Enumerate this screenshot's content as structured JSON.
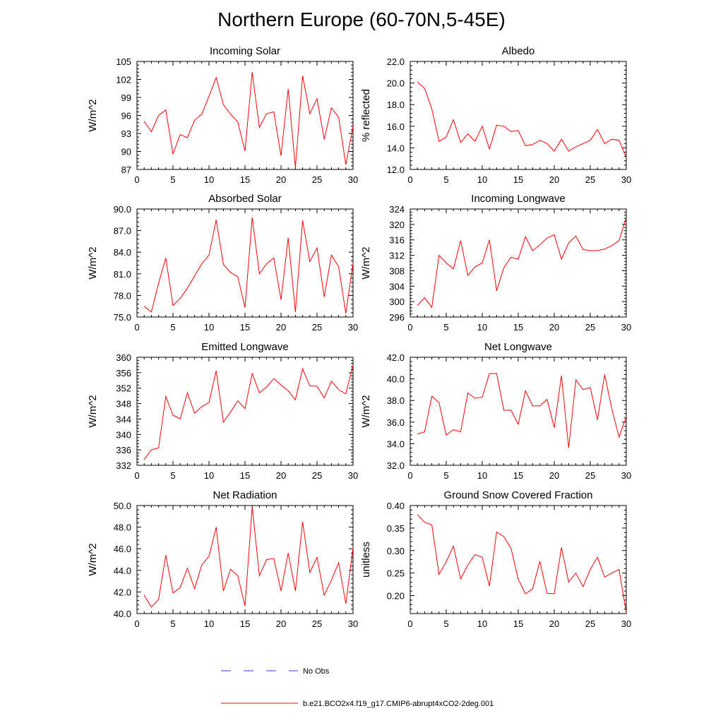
{
  "title": "Northern Europe (60-70N,5-45E)",
  "colors": {
    "model": "#ff0000",
    "obs": "#3b3bbf",
    "axis": "#000000"
  },
  "legend": [
    {
      "label": "No Obs",
      "style": "dashed",
      "color": "#3b3bbf"
    },
    {
      "label": "b.e21.BCO2x4.f19_g17.CMIP6-abrupt4xCO2-2deg.001",
      "style": "solid",
      "color": "#ff0000"
    }
  ],
  "chart_data": [
    {
      "type": "line",
      "title": "Incoming Solar",
      "ylabel": "W/m^2",
      "xlabel": "",
      "xlim": [
        0,
        30
      ],
      "ylim": [
        87,
        105
      ],
      "xticks": [
        "0",
        "5",
        "10",
        "15",
        "20",
        "25",
        "30"
      ],
      "yticks": [
        "87",
        "90",
        "93",
        "96",
        "99",
        "102",
        "105"
      ],
      "x": [
        1,
        2,
        3,
        4,
        5,
        6,
        7,
        8,
        9,
        10,
        11,
        12,
        13,
        14,
        15,
        16,
        17,
        18,
        19,
        20,
        21,
        22,
        23,
        24,
        25,
        26,
        27,
        28,
        29,
        30
      ],
      "series": [
        {
          "values": [
            95.0,
            93.3,
            96.0,
            96.9,
            89.6,
            92.8,
            92.3,
            95.2,
            96.2,
            99.2,
            102.3,
            97.8,
            96.2,
            94.9,
            90.1,
            103.2,
            94.0,
            96.3,
            96.6,
            89.3,
            100.4,
            87.3,
            102.6,
            96.3,
            98.8,
            92.0,
            97.3,
            95.7,
            87.8,
            94.2
          ]
        }
      ]
    },
    {
      "type": "line",
      "title": "Albedo",
      "ylabel": "% reflected",
      "xlabel": "",
      "xlim": [
        0,
        30
      ],
      "ylim": [
        12.0,
        22.0
      ],
      "xticks": [
        "0",
        "5",
        "10",
        "15",
        "20",
        "25",
        "30"
      ],
      "yticks": [
        "12.0",
        "14.0",
        "16.0",
        "18.0",
        "20.0",
        "22.0"
      ],
      "x": [
        1,
        2,
        3,
        4,
        5,
        6,
        7,
        8,
        9,
        10,
        11,
        12,
        13,
        14,
        15,
        16,
        17,
        18,
        19,
        20,
        21,
        22,
        23,
        24,
        25,
        26,
        27,
        28,
        29,
        30
      ],
      "series": [
        {
          "values": [
            20.1,
            19.5,
            17.6,
            14.6,
            15.0,
            16.6,
            14.5,
            15.3,
            14.6,
            16.0,
            13.9,
            16.1,
            16.0,
            15.5,
            15.6,
            14.2,
            14.3,
            14.7,
            14.4,
            13.7,
            14.8,
            13.7,
            14.1,
            14.4,
            14.7,
            15.7,
            14.4,
            14.8,
            14.7,
            13.1
          ]
        }
      ]
    },
    {
      "type": "line",
      "title": "Absorbed Solar",
      "ylabel": "W/m^2",
      "xlabel": "",
      "xlim": [
        0,
        30
      ],
      "ylim": [
        75.0,
        90.0
      ],
      "xticks": [
        "0",
        "5",
        "10",
        "15",
        "20",
        "25",
        "30"
      ],
      "yticks": [
        "75.0",
        "78.0",
        "81.0",
        "84.0",
        "87.0",
        "90.0"
      ],
      "x": [
        1,
        2,
        3,
        4,
        5,
        6,
        7,
        8,
        9,
        10,
        11,
        12,
        13,
        14,
        15,
        16,
        17,
        18,
        19,
        20,
        21,
        22,
        23,
        24,
        25,
        26,
        27,
        28,
        29,
        30
      ],
      "series": [
        {
          "values": [
            76.5,
            75.7,
            79.7,
            83.2,
            76.6,
            77.6,
            79.0,
            80.7,
            82.4,
            83.6,
            88.5,
            82.3,
            81.2,
            80.6,
            76.3,
            88.8,
            81.0,
            82.4,
            83.2,
            77.4,
            86.0,
            75.7,
            88.4,
            82.7,
            84.6,
            77.8,
            83.6,
            82.0,
            75.5,
            82.5
          ]
        }
      ]
    },
    {
      "type": "line",
      "title": "Incoming Longwave",
      "ylabel": "W/m^2",
      "xlabel": "",
      "xlim": [
        0,
        30
      ],
      "ylim": [
        296,
        324
      ],
      "xticks": [
        "0",
        "5",
        "10",
        "15",
        "20",
        "25",
        "30"
      ],
      "yticks": [
        "296",
        "300",
        "304",
        "308",
        "312",
        "316",
        "320",
        "324"
      ],
      "x": [
        1,
        2,
        3,
        4,
        5,
        6,
        7,
        8,
        9,
        10,
        11,
        12,
        13,
        14,
        15,
        16,
        17,
        18,
        19,
        20,
        21,
        22,
        23,
        24,
        25,
        26,
        27,
        28,
        29,
        30
      ],
      "series": [
        {
          "values": [
            299.0,
            301.0,
            298.5,
            312.0,
            310.0,
            308.5,
            315.8,
            306.8,
            309.0,
            310.0,
            316.0,
            302.8,
            308.8,
            311.5,
            311.0,
            316.8,
            313.2,
            314.7,
            316.5,
            317.3,
            311.0,
            315.2,
            317.0,
            313.5,
            313.2,
            313.2,
            313.6,
            314.5,
            315.8,
            321.8
          ]
        }
      ]
    },
    {
      "type": "line",
      "title": "Emitted Longwave",
      "ylabel": "W/m^2",
      "xlabel": "",
      "xlim": [
        0,
        30
      ],
      "ylim": [
        332,
        360
      ],
      "xticks": [
        "0",
        "5",
        "10",
        "15",
        "20",
        "25",
        "30"
      ],
      "yticks": [
        "332",
        "336",
        "340",
        "344",
        "348",
        "352",
        "356",
        "360"
      ],
      "x": [
        1,
        2,
        3,
        4,
        5,
        6,
        7,
        8,
        9,
        10,
        11,
        12,
        13,
        14,
        15,
        16,
        17,
        18,
        19,
        20,
        21,
        22,
        23,
        24,
        25,
        26,
        27,
        28,
        29,
        30
      ],
      "series": [
        {
          "values": [
            333.5,
            336.0,
            336.5,
            349.8,
            345.0,
            344.0,
            350.8,
            345.5,
            347.2,
            348.3,
            356.5,
            343.2,
            345.8,
            348.7,
            346.7,
            355.8,
            350.8,
            352.3,
            354.5,
            352.8,
            351.3,
            349.0,
            357.0,
            352.6,
            352.5,
            349.5,
            353.8,
            351.6,
            350.5,
            358.0
          ]
        }
      ]
    },
    {
      "type": "line",
      "title": "Net Longwave",
      "ylabel": "W/m^2",
      "xlabel": "",
      "xlim": [
        0,
        30
      ],
      "ylim": [
        32.0,
        42.0
      ],
      "xticks": [
        "0",
        "5",
        "10",
        "15",
        "20",
        "25",
        "30"
      ],
      "yticks": [
        "32.0",
        "34.0",
        "36.0",
        "38.0",
        "40.0",
        "42.0"
      ],
      "x": [
        1,
        2,
        3,
        4,
        5,
        6,
        7,
        8,
        9,
        10,
        11,
        12,
        13,
        14,
        15,
        16,
        17,
        18,
        19,
        20,
        21,
        22,
        23,
        24,
        25,
        26,
        27,
        28,
        29,
        30
      ],
      "series": [
        {
          "values": [
            34.9,
            35.1,
            38.4,
            37.8,
            34.8,
            35.3,
            35.1,
            38.7,
            38.2,
            38.3,
            40.5,
            40.5,
            37.1,
            37.1,
            35.8,
            38.9,
            37.5,
            37.5,
            38.1,
            35.5,
            40.3,
            33.6,
            39.9,
            39.0,
            39.2,
            36.2,
            40.4,
            37.2,
            34.6,
            36.5
          ]
        }
      ]
    },
    {
      "type": "line",
      "title": "Net Radiation",
      "ylabel": "W/m^2",
      "xlabel": "",
      "xlim": [
        0,
        30
      ],
      "ylim": [
        40.0,
        50.0
      ],
      "xticks": [
        "0",
        "5",
        "10",
        "15",
        "20",
        "25",
        "30"
      ],
      "yticks": [
        "40.0",
        "42.0",
        "44.0",
        "46.0",
        "48.0",
        "50.0"
      ],
      "x": [
        1,
        2,
        3,
        4,
        5,
        6,
        7,
        8,
        9,
        10,
        11,
        12,
        13,
        14,
        15,
        16,
        17,
        18,
        19,
        20,
        21,
        22,
        23,
        24,
        25,
        26,
        27,
        28,
        29,
        30
      ],
      "series": [
        {
          "values": [
            41.7,
            40.6,
            41.3,
            45.4,
            41.9,
            42.4,
            44.2,
            42.3,
            44.5,
            45.3,
            48.0,
            42.1,
            44.1,
            43.5,
            40.7,
            49.9,
            43.5,
            45.0,
            45.1,
            42.1,
            45.6,
            42.1,
            48.5,
            43.8,
            45.2,
            41.7,
            43.1,
            44.7,
            40.9,
            46.1
          ]
        }
      ]
    },
    {
      "type": "line",
      "title": "Ground Snow Covered Fraction",
      "ylabel": "unitless",
      "xlabel": "",
      "xlim": [
        0,
        30
      ],
      "ylim": [
        0.16,
        0.4
      ],
      "xticks": [
        "0",
        "5",
        "10",
        "15",
        "20",
        "25",
        "30"
      ],
      "yticks": [
        "0.20",
        "0.25",
        "0.30",
        "0.35",
        "0.40"
      ],
      "x": [
        1,
        2,
        3,
        4,
        5,
        6,
        7,
        8,
        9,
        10,
        11,
        12,
        13,
        14,
        15,
        16,
        17,
        18,
        19,
        20,
        21,
        22,
        23,
        24,
        25,
        26,
        27,
        28,
        29,
        30
      ],
      "series": [
        {
          "values": [
            0.38,
            0.363,
            0.357,
            0.247,
            0.275,
            0.31,
            0.237,
            0.268,
            0.291,
            0.285,
            0.221,
            0.341,
            0.331,
            0.305,
            0.236,
            0.204,
            0.215,
            0.276,
            0.205,
            0.204,
            0.307,
            0.23,
            0.25,
            0.22,
            0.258,
            0.285,
            0.241,
            0.25,
            0.258,
            0.162
          ]
        }
      ]
    }
  ]
}
